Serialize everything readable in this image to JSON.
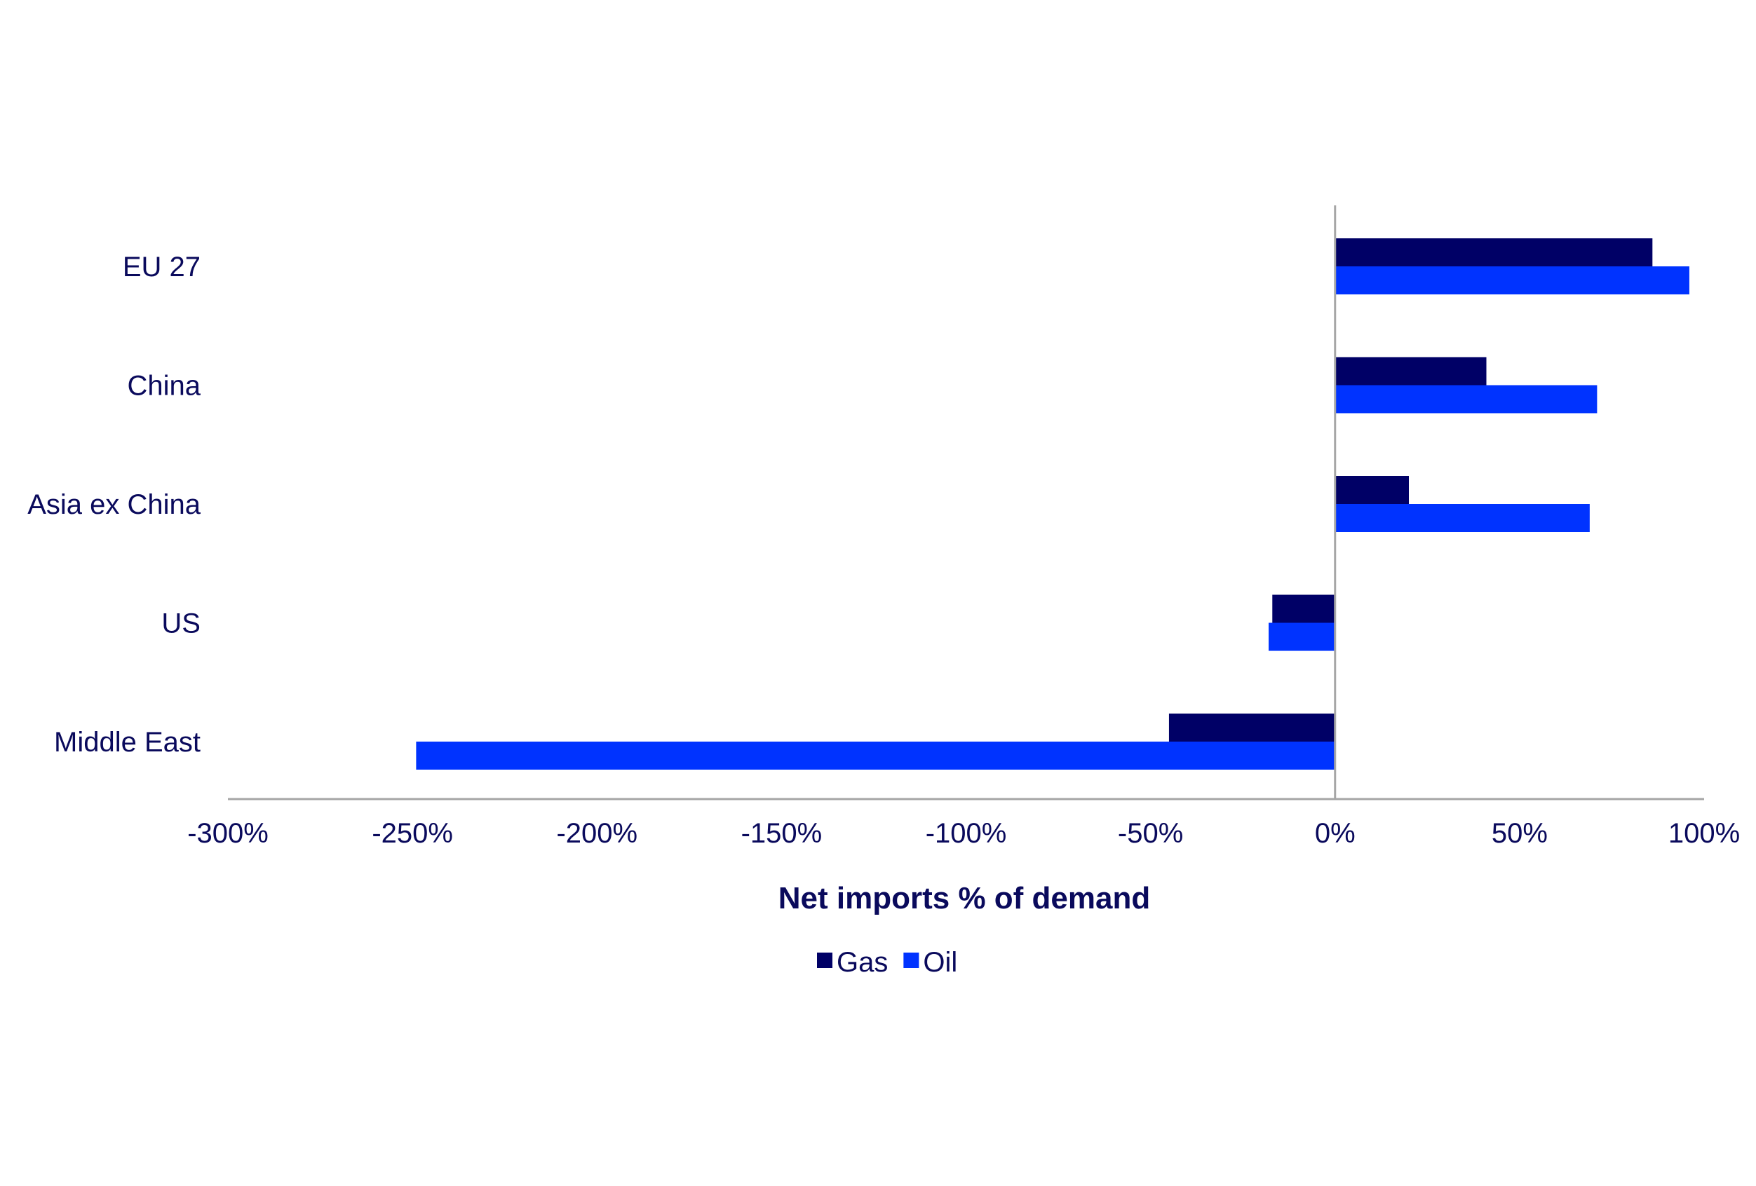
{
  "chart_data": {
    "type": "bar",
    "orientation": "horizontal",
    "categories": [
      "EU 27",
      "China",
      "Asia ex China",
      "US",
      "Middle East"
    ],
    "series": [
      {
        "name": "Gas",
        "color": "#000066",
        "values": [
          86,
          41,
          20,
          -17,
          -45
        ]
      },
      {
        "name": "Oil",
        "color": "#0033ff",
        "values": [
          96,
          71,
          69,
          -18,
          -249
        ]
      }
    ],
    "xlabel": "Net imports % of demand",
    "xlim": [
      -300,
      100
    ],
    "xticks": [
      -300,
      -250,
      -200,
      -150,
      -100,
      -50,
      0,
      50,
      100
    ],
    "xtick_labels": [
      "-300%",
      "-250%",
      "-200%",
      "-150%",
      "-100%",
      "-50%",
      "0%",
      "50%",
      "100%"
    ],
    "grid": false,
    "legend_position": "bottom"
  }
}
